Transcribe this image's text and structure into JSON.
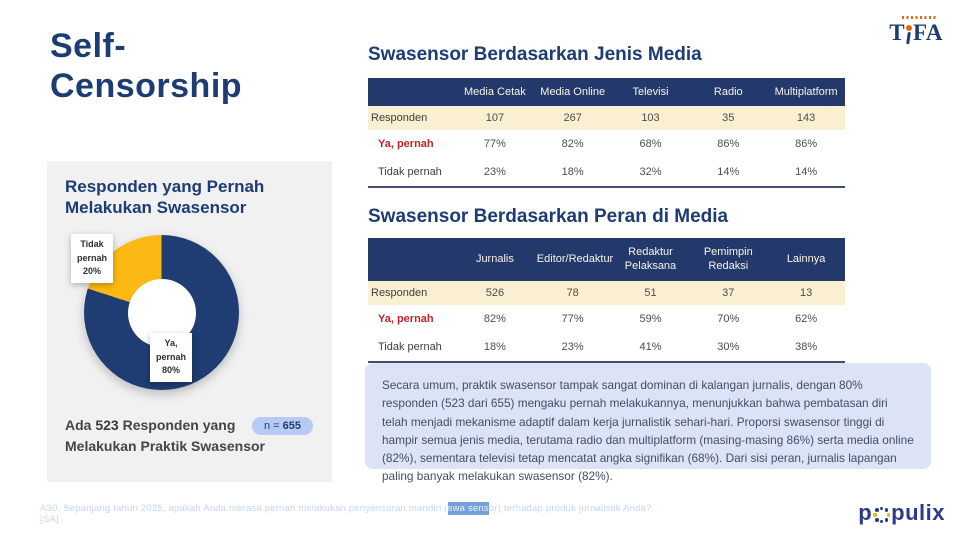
{
  "slide": {
    "title_line1": "Self-",
    "title_line2": "Censorship",
    "footnote": {
      "prefix": "A30. Sepanjang tahun 2025, apakah Anda merasa pernah melakukan penyensoran mandiri (",
      "highlighted": "swa sens",
      "suffix": "or) terhadap produk jurnalistik Anda? [SA]"
    }
  },
  "logos": {
    "tifa": {
      "part1": "T",
      "part2": "FA"
    },
    "populix": {
      "part1": "p",
      "part2": "pulix"
    }
  },
  "card": {
    "title": "Responden yang Pernah Melakukan Swasensor",
    "labels": {
      "no": "Tidak\npernah\n20%",
      "yes": "Ya,\npernah\n80%"
    },
    "caption_pre": "Ada ",
    "caption_count": "523",
    "caption_post": " Responden yang Melakukan Praktik Swasensor",
    "badge_label": "n = ",
    "badge_value": "655"
  },
  "tables": [
    {
      "title": "Swasensor Berdasarkan Jenis Media",
      "columns": [
        "",
        "Media Cetak",
        "Media Online",
        "Televisi",
        "Radio",
        "Multiplatform"
      ],
      "rows": [
        {
          "label": "Responden",
          "values": [
            "107",
            "267",
            "103",
            "35",
            "143"
          ]
        },
        {
          "label": "Ya, pernah",
          "values": [
            "77%",
            "82%",
            "68%",
            "86%",
            "86%"
          ]
        },
        {
          "label": "Tidak pernah",
          "values": [
            "23%",
            "18%",
            "32%",
            "14%",
            "14%"
          ]
        }
      ]
    },
    {
      "title": "Swasensor Berdasarkan Peran di Media",
      "columns": [
        "",
        "Jurnalis",
        "Editor/Redaktur",
        "Redaktur Pelaksana",
        "Pemimpin Redaksi",
        "Lainnya"
      ],
      "rows": [
        {
          "label": "Responden",
          "values": [
            "526",
            "78",
            "51",
            "37",
            "13"
          ]
        },
        {
          "label": "Ya, pernah",
          "values": [
            "82%",
            "77%",
            "59%",
            "70%",
            "62%"
          ]
        },
        {
          "label": "Tidak pernah",
          "values": [
            "18%",
            "23%",
            "41%",
            "30%",
            "38%"
          ]
        }
      ]
    }
  ],
  "summary": "Secara umum, praktik swasensor tampak sangat dominan di kalangan jurnalis, dengan 80% responden (523 dari 655) mengaku pernah melakukannya, menunjukkan bahwa pembatasan diri telah menjadi mekanisme adaptif dalam kerja jurnalistik sehari-hari. Proporsi swasensor tinggi di hampir semua jenis media, terutama radio dan multiplatform (masing-masing 86%) serta media online (82%), sementara televisi tetap mencatat angka signifikan (68%). Dari sisi peran, jurnalis lapangan paling banyak melakukan swasensor (82%).",
  "colors": {
    "navy": "#1D3C74",
    "table_header_bg": "#24396B",
    "cream_row_bg": "#FAEFD0",
    "red_accent": "#C0232B",
    "donut_blue": "#1F3D73",
    "donut_yellow": "#FCB813",
    "summary_bg": "#DCE3F6",
    "badge_bg": "#B7CAF4",
    "card_bg": "#F1F1F2"
  },
  "chart_data": [
    {
      "type": "pie",
      "title": "Responden yang Pernah Melakukan Swasensor",
      "labels": [
        "Ya, pernah",
        "Tidak pernah"
      ],
      "values": [
        80,
        20
      ],
      "colors": [
        "#1F3D73",
        "#FCB813"
      ],
      "sample_size": "n = 655",
      "annotation": "Ada 523 Responden yang Melakukan Praktik Swasensor",
      "donut": true
    },
    {
      "type": "table",
      "title": "Swasensor Berdasarkan Jenis Media",
      "categories": [
        "Media Cetak",
        "Media Online",
        "Televisi",
        "Radio",
        "Multiplatform"
      ],
      "series": [
        {
          "name": "Responden",
          "values": [
            107,
            267,
            103,
            35,
            143
          ]
        },
        {
          "name": "Ya, pernah",
          "values": [
            "77%",
            "82%",
            "68%",
            "86%",
            "86%"
          ]
        },
        {
          "name": "Tidak pernah",
          "values": [
            "23%",
            "18%",
            "32%",
            "14%",
            "14%"
          ]
        }
      ]
    },
    {
      "type": "table",
      "title": "Swasensor Berdasarkan Peran di Media",
      "categories": [
        "Jurnalis",
        "Editor/Redaktur",
        "Redaktur Pelaksana",
        "Pemimpin Redaksi",
        "Lainnya"
      ],
      "series": [
        {
          "name": "Responden",
          "values": [
            526,
            78,
            51,
            37,
            13
          ]
        },
        {
          "name": "Ya, pernah",
          "values": [
            "82%",
            "77%",
            "59%",
            "70%",
            "62%"
          ]
        },
        {
          "name": "Tidak pernah",
          "values": [
            "18%",
            "23%",
            "41%",
            "30%",
            "38%"
          ]
        }
      ]
    }
  ]
}
